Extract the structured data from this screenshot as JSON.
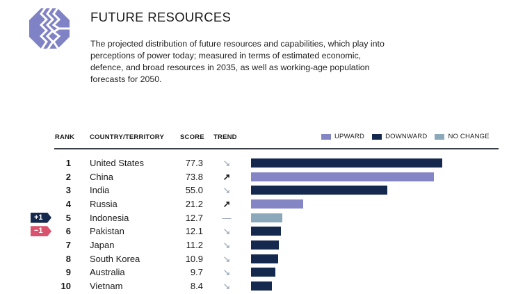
{
  "header": {
    "title": "FUTURE RESOURCES",
    "description": "The projected distribution of future resources and capabilities, which play into perceptions of power today; measured in terms of estimated economic, defence, and broad resources in 2035, as well as working-age population forecasts for 2050.",
    "logo_icon": "zigzag-octagon-logo"
  },
  "colors": {
    "upward": "#8385c4",
    "downward": "#15294f",
    "no_change": "#8ba9bb",
    "badge_up": "#15294f",
    "badge_down": "#d9536f",
    "arrow_up": "#1a1a1a",
    "arrow_down": "#8a9aab",
    "logo": "#7f82c4"
  },
  "chart_data": {
    "type": "bar",
    "orientation": "horizontal",
    "title": "FUTURE RESOURCES",
    "columns": [
      "RANK",
      "COUNTRY/TERRITORY",
      "SCORE",
      "TREND"
    ],
    "legend": [
      {
        "key": "upward",
        "label": "UPWARD"
      },
      {
        "key": "downward",
        "label": "DOWNWARD"
      },
      {
        "key": "no_change",
        "label": "NO CHANGE"
      }
    ],
    "legend_position": "top-right",
    "xlim": [
      0,
      100
    ],
    "rows": [
      {
        "rank": "1",
        "country": "United States",
        "score": 77.3,
        "score_label": "77.3",
        "trend": "downward",
        "trend_glyph": "↘",
        "rank_change": null
      },
      {
        "rank": "2",
        "country": "China",
        "score": 73.8,
        "score_label": "73.8",
        "trend": "upward",
        "trend_glyph": "↗",
        "rank_change": null
      },
      {
        "rank": "3",
        "country": "India",
        "score": 55.0,
        "score_label": "55.0",
        "trend": "downward",
        "trend_glyph": "↘",
        "rank_change": null
      },
      {
        "rank": "4",
        "country": "Russia",
        "score": 21.2,
        "score_label": "21.2",
        "trend": "upward",
        "trend_glyph": "↗",
        "rank_change": null
      },
      {
        "rank": "5",
        "country": "Indonesia",
        "score": 12.7,
        "score_label": "12.7",
        "trend": "no_change",
        "trend_glyph": "—",
        "rank_change": "+1"
      },
      {
        "rank": "6",
        "country": "Pakistan",
        "score": 12.1,
        "score_label": "12.1",
        "trend": "downward",
        "trend_glyph": "↘",
        "rank_change": "−1"
      },
      {
        "rank": "7",
        "country": "Japan",
        "score": 11.2,
        "score_label": "11.2",
        "trend": "downward",
        "trend_glyph": "↘",
        "rank_change": null
      },
      {
        "rank": "8",
        "country": "South Korea",
        "score": 10.9,
        "score_label": "10.9",
        "trend": "downward",
        "trend_glyph": "↘",
        "rank_change": null
      },
      {
        "rank": "9",
        "country": "Australia",
        "score": 9.7,
        "score_label": "9.7",
        "trend": "downward",
        "trend_glyph": "↘",
        "rank_change": null
      },
      {
        "rank": "10",
        "country": "Vietnam",
        "score": 8.4,
        "score_label": "8.4",
        "trend": "downward",
        "trend_glyph": "↘",
        "rank_change": null
      }
    ]
  }
}
